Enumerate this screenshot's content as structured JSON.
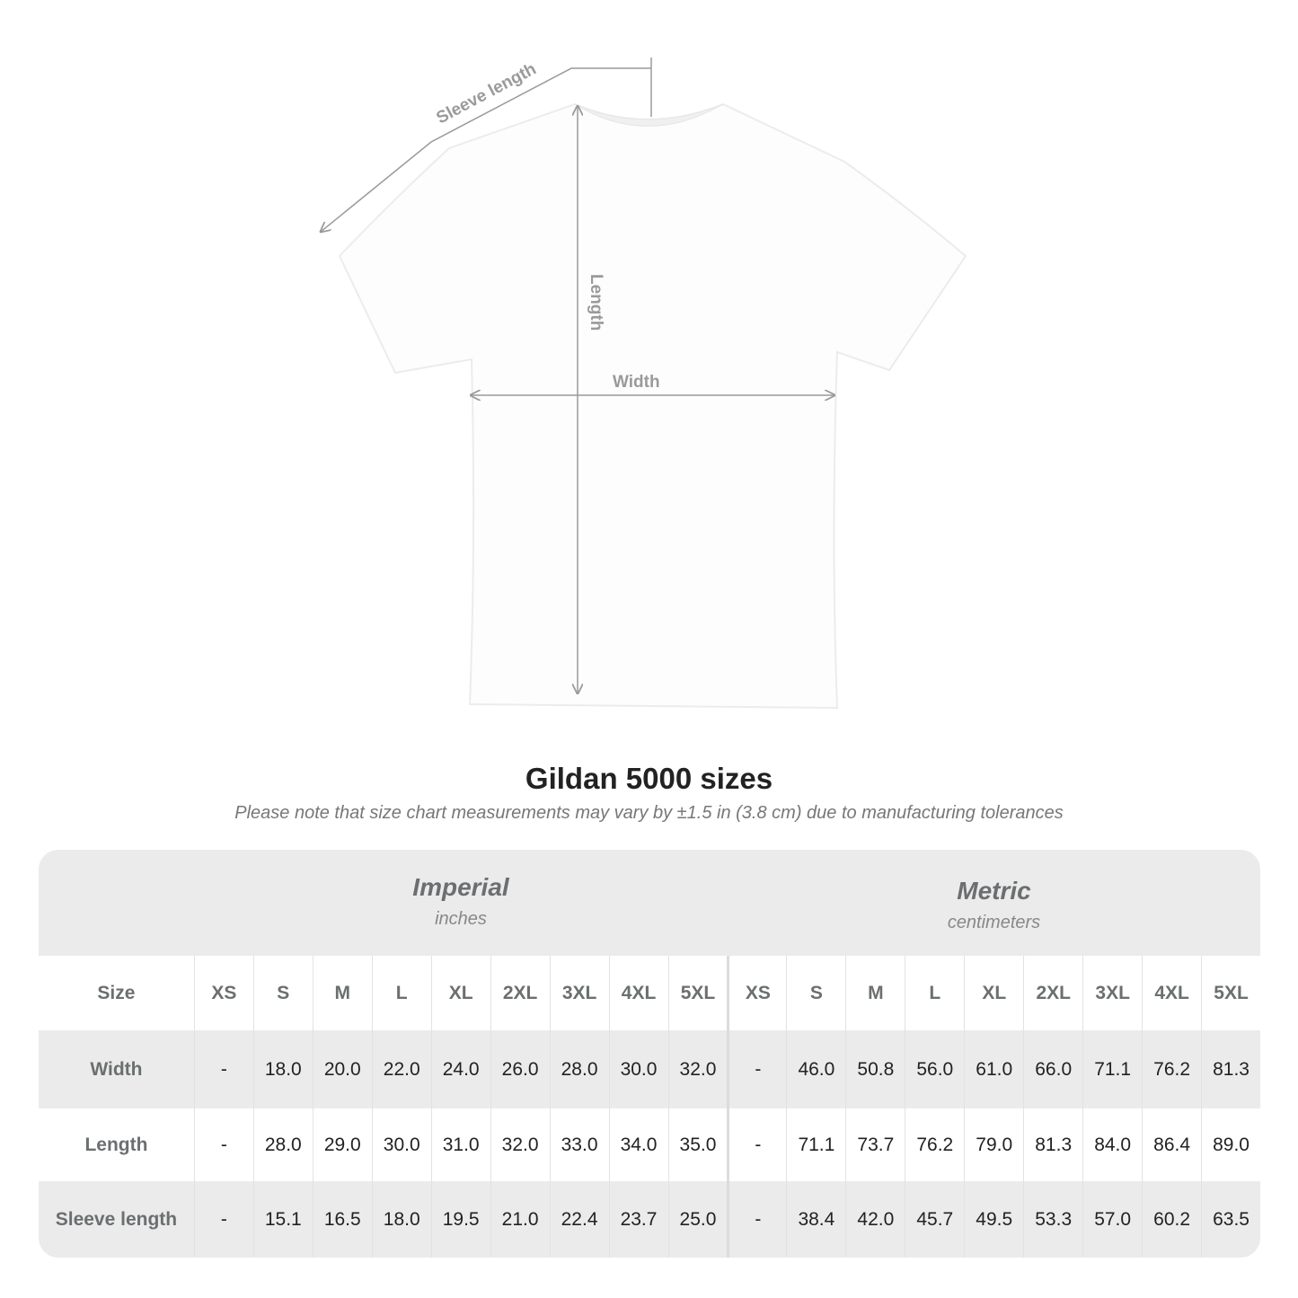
{
  "diagram": {
    "labels": {
      "sleeve": "Sleeve length",
      "length": "Length",
      "width": "Width"
    },
    "shirt_color": "#ffffff",
    "line_color": "#9a9a9a"
  },
  "title": "Gildan 5000 sizes",
  "subtitle": "Please note that size chart measurements may vary by ±1.5 in (3.8 cm) due to manufacturing tolerances",
  "table": {
    "imperial": {
      "name": "Imperial",
      "unit": "inches"
    },
    "metric": {
      "name": "Metric",
      "unit": "centimeters"
    },
    "size_label": "Size",
    "sizes": [
      "XS",
      "S",
      "M",
      "L",
      "XL",
      "2XL",
      "3XL",
      "4XL",
      "5XL"
    ],
    "rows": [
      {
        "label": "Width",
        "imperial": [
          "-",
          "18.0",
          "20.0",
          "22.0",
          "24.0",
          "26.0",
          "28.0",
          "30.0",
          "32.0"
        ],
        "metric": [
          "-",
          "46.0",
          "50.8",
          "56.0",
          "61.0",
          "66.0",
          "71.1",
          "76.2",
          "81.3"
        ]
      },
      {
        "label": "Length",
        "imperial": [
          "-",
          "28.0",
          "29.0",
          "30.0",
          "31.0",
          "32.0",
          "33.0",
          "34.0",
          "35.0"
        ],
        "metric": [
          "-",
          "71.1",
          "73.7",
          "76.2",
          "79.0",
          "81.3",
          "84.0",
          "86.4",
          "89.0"
        ]
      },
      {
        "label": "Sleeve length",
        "imperial": [
          "-",
          "15.1",
          "16.5",
          "18.0",
          "19.5",
          "21.0",
          "22.4",
          "23.7",
          "25.0"
        ],
        "metric": [
          "-",
          "38.4",
          "42.0",
          "45.7",
          "49.5",
          "53.3",
          "57.0",
          "60.2",
          "63.5"
        ]
      }
    ],
    "colors": {
      "header_bg": "#ebebeb",
      "alt_row_bg": "#ebebeb",
      "row_bg": "#ffffff",
      "label_text": "#6b6f70"
    }
  }
}
